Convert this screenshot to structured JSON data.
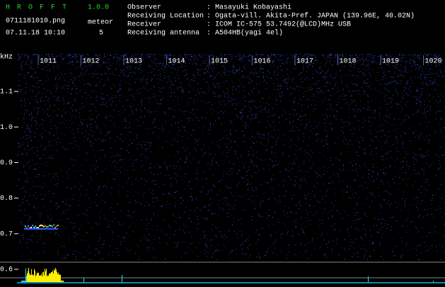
{
  "header": {
    "app_name": "H R O F F T",
    "version": "1.0.0",
    "filename": "0711181010.png",
    "datetime": "07.11.18 10:10",
    "meteor_label": "meteor",
    "meteor_count": 5,
    "separator": ":",
    "fields": [
      {
        "label": "Observer",
        "value": "Masayuki Kobayashi"
      },
      {
        "label": "Receiving Location",
        "value": "Ogata-vill. Akita-Pref. JAPAN (139.96E, 40.02N)"
      },
      {
        "label": "Receiver",
        "value": "ICOM IC-575 53.7492(@LCD)MHz USB"
      },
      {
        "label": "Receiving antenna",
        "value": "A504HB(yagi 4el)"
      }
    ]
  },
  "spectrogram": {
    "y_unit": "kHz",
    "x_ticks": [
      "1011",
      "1012",
      "1013",
      "1014",
      "1015",
      "1016",
      "1017",
      "1018",
      "1019",
      "1020"
    ],
    "y_ticks": [
      "1.1",
      "1.0",
      "0.9",
      "0.8",
      "0.7",
      "0.6"
    ]
  }
}
